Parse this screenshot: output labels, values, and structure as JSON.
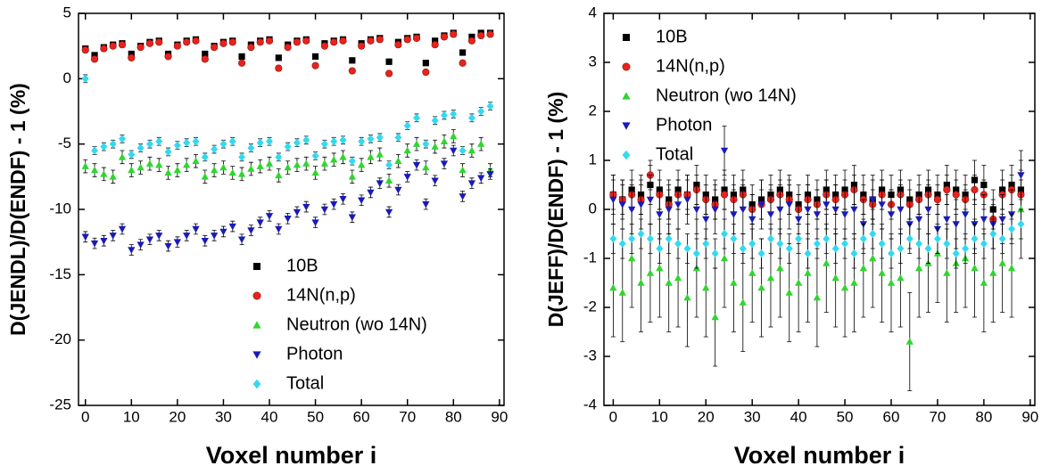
{
  "chart_data": [
    {
      "type": "scatter",
      "xlabel": "Voxel number i",
      "ylabel": "D(JENDL)/D(ENDF) - 1 (%)",
      "xlim": [
        -1.5,
        91
      ],
      "ylim": [
        -25,
        5
      ],
      "xticks": [
        0,
        10,
        20,
        30,
        40,
        50,
        60,
        70,
        80,
        90
      ],
      "yticks": [
        -25,
        -20,
        -15,
        -10,
        -5,
        0,
        5
      ],
      "legend": "lower center",
      "x": [
        0,
        2,
        4,
        6,
        8,
        10,
        12,
        14,
        16,
        18,
        20,
        22,
        24,
        26,
        28,
        30,
        32,
        34,
        36,
        38,
        40,
        42,
        44,
        46,
        48,
        50,
        52,
        54,
        56,
        58,
        60,
        62,
        64,
        66,
        68,
        70,
        72,
        74,
        76,
        78,
        80,
        82,
        84,
        86,
        88
      ],
      "series": [
        {
          "name": "10B",
          "color": "#000000",
          "marker": "square",
          "error": 0.2,
          "values": [
            2.3,
            1.8,
            2.4,
            2.6,
            2.7,
            1.9,
            2.5,
            2.8,
            2.9,
            1.9,
            2.6,
            2.9,
            3.0,
            1.9,
            2.5,
            2.8,
            2.9,
            1.7,
            2.6,
            2.9,
            3.0,
            1.6,
            2.6,
            2.9,
            3.0,
            1.7,
            2.7,
            2.9,
            3.0,
            1.4,
            2.7,
            3.0,
            3.1,
            1.3,
            2.8,
            3.1,
            3.2,
            1.2,
            2.9,
            3.3,
            3.5,
            2.0,
            3.2,
            3.5,
            3.5
          ]
        },
        {
          "name": "14N(n,p)",
          "color": "#e8231c",
          "marker": "circle",
          "error": 0.2,
          "values": [
            2.2,
            1.5,
            2.3,
            2.5,
            2.6,
            1.6,
            2.4,
            2.7,
            2.8,
            1.7,
            2.5,
            2.8,
            2.9,
            1.5,
            2.4,
            2.7,
            2.8,
            1.2,
            2.4,
            2.8,
            2.9,
            0.8,
            2.4,
            2.8,
            2.9,
            1.0,
            2.5,
            2.8,
            2.9,
            0.6,
            2.5,
            2.9,
            3.0,
            0.4,
            2.6,
            3.0,
            3.1,
            0.5,
            2.6,
            3.2,
            3.4,
            1.2,
            2.9,
            3.3,
            3.4
          ]
        },
        {
          "name": "Neutron (wo 14N)",
          "color": "#2fd62f",
          "marker": "triangle-up",
          "error": 0.5,
          "values": [
            -6.7,
            -7.0,
            -7.3,
            -7.5,
            -6.0,
            -7.0,
            -6.8,
            -6.5,
            -6.6,
            -7.2,
            -7.0,
            -6.6,
            -6.3,
            -7.5,
            -7.0,
            -6.8,
            -7.2,
            -7.3,
            -6.9,
            -6.7,
            -6.5,
            -7.4,
            -6.8,
            -6.6,
            -6.5,
            -7.2,
            -6.5,
            -6.2,
            -6.0,
            -7.5,
            -6.6,
            -6.0,
            -5.8,
            -7.8,
            -6.3,
            -5.5,
            -5.0,
            -6.8,
            -5.2,
            -4.8,
            -4.4,
            -7.0,
            -5.5,
            -5.0,
            -7.0
          ]
        },
        {
          "name": "Photon",
          "color": "#1a1ab8",
          "marker": "triangle-down",
          "error": 0.4,
          "values": [
            -12.1,
            -12.6,
            -12.4,
            -12.0,
            -11.5,
            -13.1,
            -12.7,
            -12.3,
            -12.0,
            -12.8,
            -12.5,
            -12.0,
            -11.5,
            -12.4,
            -12.0,
            -11.7,
            -11.3,
            -12.3,
            -11.6,
            -11.0,
            -10.5,
            -11.5,
            -10.7,
            -10.2,
            -9.8,
            -11.0,
            -10.0,
            -9.6,
            -9.2,
            -10.6,
            -9.3,
            -8.7,
            -8.0,
            -10.2,
            -8.5,
            -7.5,
            -6.6,
            -9.6,
            -7.8,
            -6.5,
            -5.5,
            -9.0,
            -8.0,
            -7.6,
            -7.3
          ]
        },
        {
          "name": "Total",
          "color": "#33d9f0",
          "marker": "diamond",
          "error": 0.3,
          "values": [
            0,
            -5.5,
            -5.2,
            -5.0,
            -4.6,
            -5.8,
            -5.3,
            -5.0,
            -4.8,
            -5.6,
            -5.1,
            -4.9,
            -4.8,
            -6.0,
            -5.4,
            -5.0,
            -4.8,
            -6.0,
            -5.3,
            -4.9,
            -4.8,
            -6.0,
            -5.2,
            -4.9,
            -4.7,
            -5.9,
            -5.0,
            -4.8,
            -4.7,
            -6.3,
            -4.8,
            -4.6,
            -4.5,
            -6.6,
            -4.5,
            -3.6,
            -3.0,
            -5.0,
            -3.2,
            -2.8,
            -2.7,
            -5.5,
            -3.0,
            -2.5,
            -2.1
          ]
        }
      ]
    },
    {
      "type": "scatter",
      "xlabel": "Voxel number i",
      "ylabel": "D(JEFF)/D(ENDF) - 1 (%)",
      "xlim": [
        -2,
        91
      ],
      "ylim": [
        -4,
        4
      ],
      "xticks": [
        0,
        10,
        20,
        30,
        40,
        50,
        60,
        70,
        80,
        90
      ],
      "yticks": [
        -4,
        -3,
        -2,
        -1,
        0,
        1,
        2,
        3,
        4
      ],
      "legend": "upper left",
      "x": [
        0,
        2,
        4,
        6,
        8,
        10,
        12,
        14,
        16,
        18,
        20,
        22,
        24,
        26,
        28,
        30,
        32,
        34,
        36,
        38,
        40,
        42,
        44,
        46,
        48,
        50,
        52,
        54,
        56,
        58,
        60,
        62,
        64,
        66,
        68,
        70,
        72,
        74,
        76,
        78,
        80,
        82,
        84,
        86,
        88
      ],
      "series": [
        {
          "name": "10B",
          "color": "#000000",
          "marker": "square",
          "error": 0.4,
          "values": [
            0.3,
            0.2,
            0.4,
            0.3,
            0.5,
            0.4,
            0.2,
            0.4,
            0.3,
            0.5,
            0.3,
            0.2,
            0.4,
            0.3,
            0.4,
            0.1,
            0.2,
            0.3,
            0.4,
            0.3,
            0.1,
            0.3,
            0.2,
            0.4,
            0.3,
            0.4,
            0.5,
            0.3,
            0.2,
            0.4,
            0.3,
            0.4,
            0.2,
            0.3,
            0.4,
            0.3,
            0.5,
            0.4,
            0.3,
            0.6,
            0.5,
            0.0,
            0.4,
            0.5,
            0.4
          ]
        },
        {
          "name": "14N(n,p)",
          "color": "#e8231c",
          "marker": "circle",
          "error": 0.3,
          "values": [
            0.3,
            0.2,
            0.3,
            0.2,
            0.7,
            0.3,
            0.1,
            0.3,
            0.3,
            0.4,
            0.2,
            0.1,
            0.3,
            0.2,
            0.3,
            0.0,
            0.1,
            0.2,
            0.3,
            0.2,
            0.0,
            0.2,
            0.1,
            0.3,
            0.2,
            0.3,
            0.4,
            0.2,
            0.1,
            0.3,
            0.1,
            0.3,
            0.1,
            0.2,
            0.3,
            0.2,
            0.4,
            0.3,
            0.2,
            0.4,
            0.3,
            -0.2,
            0.3,
            0.4,
            0.3
          ]
        },
        {
          "name": "Neutron (wo 14N)",
          "color": "#2fd62f",
          "marker": "triangle-up",
          "error": 1.0,
          "values": [
            -1.6,
            -1.7,
            -1.0,
            -1.5,
            -1.3,
            -1.2,
            -1.5,
            -1.4,
            -1.8,
            -1.2,
            -1.6,
            -2.2,
            -1.0,
            -1.5,
            -1.9,
            -1.3,
            -1.6,
            -1.4,
            -1.2,
            -1.7,
            -1.5,
            -1.3,
            -1.8,
            -1.1,
            -1.4,
            -1.6,
            -1.5,
            -1.2,
            -1.0,
            -1.3,
            -1.5,
            -1.4,
            -2.7,
            -1.2,
            -1.1,
            -0.9,
            -1.3,
            -1.1,
            -1.0,
            -1.2,
            -1.5,
            -1.3,
            -1.1,
            -1.2,
            0.0
          ]
        },
        {
          "name": "Photon",
          "color": "#1a1ab8",
          "marker": "triangle-down",
          "error": 0.5,
          "values": [
            0.2,
            0.1,
            0.0,
            0.1,
            0.2,
            -0.1,
            0.0,
            0.1,
            0.2,
            0.0,
            -0.2,
            0.0,
            1.2,
            -0.1,
            0.0,
            -0.2,
            0.1,
            -0.1,
            0.0,
            0.1,
            -0.2,
            0.0,
            -0.1,
            0.1,
            0.0,
            -0.1,
            0.0,
            -0.3,
            0.2,
            0.1,
            -0.1,
            0.0,
            -0.3,
            -0.2,
            0.0,
            -0.4,
            -0.2,
            -0.3,
            -0.1,
            -0.3,
            -0.2,
            -0.3,
            -0.2,
            -0.1,
            0.7
          ]
        },
        {
          "name": "Total",
          "color": "#33d9f0",
          "marker": "diamond",
          "error": 0.3,
          "values": [
            -0.6,
            -0.7,
            -0.6,
            -0.5,
            -0.6,
            -0.8,
            -0.6,
            -0.7,
            -0.8,
            -0.9,
            -0.7,
            -0.9,
            -0.5,
            -0.6,
            -0.8,
            -0.7,
            -0.9,
            -0.6,
            -0.7,
            -0.8,
            -0.6,
            -0.9,
            -0.7,
            -0.6,
            -0.8,
            -0.7,
            -0.9,
            -0.6,
            -0.5,
            -0.7,
            -0.9,
            -0.8,
            -0.6,
            -0.7,
            -0.8,
            -0.6,
            -0.7,
            -0.9,
            -0.8,
            -0.6,
            -0.7,
            -0.5,
            -0.6,
            -0.4,
            -0.3
          ]
        }
      ]
    }
  ]
}
